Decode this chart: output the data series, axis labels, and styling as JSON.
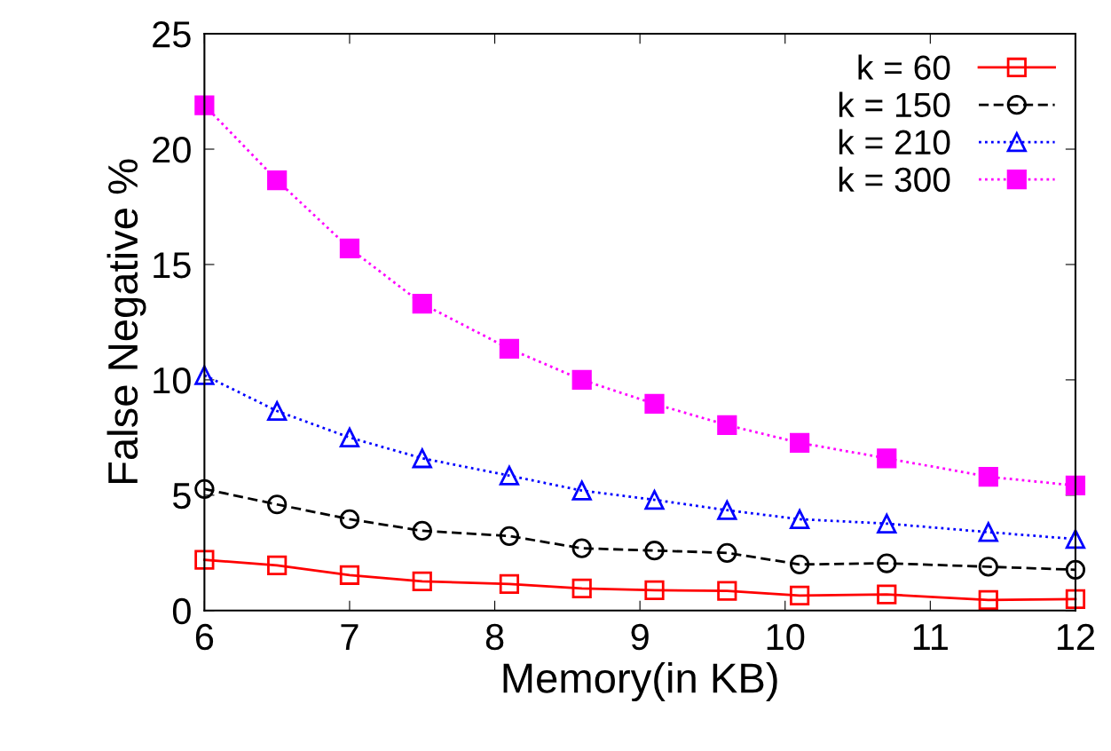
{
  "chart_data": {
    "type": "line",
    "xlabel": "Memory(in KB)",
    "ylabel": "False Negative %",
    "x": [
      6,
      6.5,
      7,
      7.5,
      8.1,
      8.6,
      9.1,
      9.6,
      10.1,
      10.7,
      11.4,
      12
    ],
    "xlim": [
      6,
      12
    ],
    "xticks": [
      6,
      7,
      8,
      9,
      10,
      11,
      12
    ],
    "ylim": [
      0,
      25
    ],
    "yticks": [
      0,
      5,
      10,
      15,
      20,
      25
    ],
    "grid": false,
    "legend": "top right",
    "series": [
      {
        "name": "k = 60",
        "color": "#ff0000",
        "marker": "square",
        "line_style": "solid",
        "values": [
          2.2,
          1.96,
          1.54,
          1.27,
          1.15,
          0.96,
          0.88,
          0.85,
          0.65,
          0.7,
          0.46,
          0.5
        ]
      },
      {
        "name": "k = 150",
        "color": "#000000",
        "marker": "circle",
        "line_style": "dashed",
        "values": [
          5.27,
          4.6,
          3.96,
          3.46,
          3.23,
          2.7,
          2.6,
          2.5,
          2.0,
          2.05,
          1.9,
          1.77
        ]
      },
      {
        "name": "k = 210",
        "color": "#0000ff",
        "marker": "triangle",
        "line_style": "dotted",
        "values": [
          10.2,
          8.65,
          7.5,
          6.6,
          5.85,
          5.2,
          4.8,
          4.35,
          3.96,
          3.77,
          3.4,
          3.1
        ]
      },
      {
        "name": "k = 300",
        "color": "#ff00ff",
        "marker": "square",
        "line_style": "dotted",
        "values": [
          21.9,
          18.65,
          15.7,
          13.3,
          11.35,
          10.0,
          8.96,
          8.04,
          7.27,
          6.6,
          5.8,
          5.42
        ]
      }
    ]
  }
}
